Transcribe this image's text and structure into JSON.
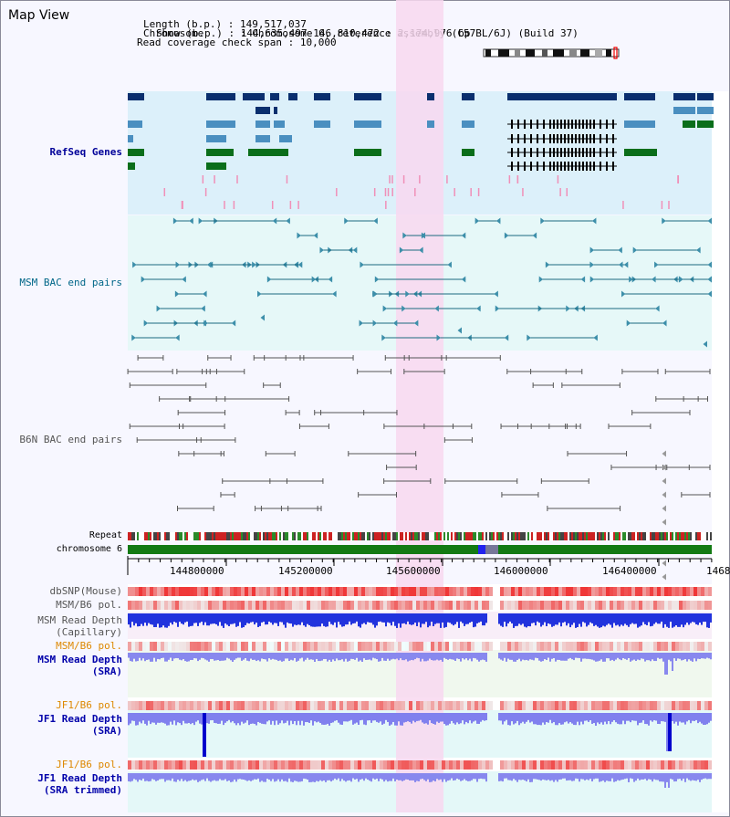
{
  "header": {
    "title": "Map View",
    "info_lines": [
      {
        "label": "Chromosome",
        "value": "Chromosome 6, reference assembly (C57BL/6J) (Build 37)"
      },
      {
        "label": "Length (b.p.)",
        "value": "149,517,037"
      },
      {
        "label": "Show (b.p.)",
        "value": "144,635,497-146,810,472 : 2,174,976 bp"
      },
      {
        "label": "Read coverage check span",
        "value": "10,000"
      }
    ]
  },
  "tracks": {
    "refseq": "RefSeq Genes",
    "msm_bac": "MSM BAC end pairs",
    "b6n_bac": "B6N BAC end pairs",
    "repeat": "Repeat",
    "chromosome": "chromosome 6",
    "dbsnp": "dbSNP(Mouse)",
    "msm_pol": "MSM/B6 pol.",
    "msm_depth_cap_1": "MSM Read Depth",
    "msm_depth_cap_2": "(Capillary)",
    "msm_pol_2": "MSM/B6 pol.",
    "msm_depth_sra_1": "MSM Read Depth",
    "msm_depth_sra_2": "(SRA)",
    "jf1_pol": "JF1/B6 pol.",
    "jf1_depth_sra_1": "JF1 Read Depth",
    "jf1_depth_sra_2": "(SRA)",
    "jf1_pol_2": "JF1/B6 pol.",
    "jf1_depth_trim_1": "JF1 Read Depth",
    "jf1_depth_trim_2": "(SRA trimmed)"
  },
  "axis": {
    "ticks": [
      "144800000",
      "145200000",
      "145600000",
      "146000000",
      "146400000",
      "1468"
    ]
  },
  "colors": {
    "refseq_bg": "#dcf0fa",
    "msm_bg": "#e6f8f8",
    "highlight": "#f8d8f0",
    "refseq_label": "#000099",
    "msm_label": "#006688",
    "b6n_label": "#555555",
    "orange_label": "#dd8800",
    "blue_label": "#0000aa",
    "gene_dark": "#0a2f6e",
    "gene_mid": "#4a8fc0",
    "gene_green": "#0a6e1a",
    "chromosome_green": "#137a13"
  }
}
